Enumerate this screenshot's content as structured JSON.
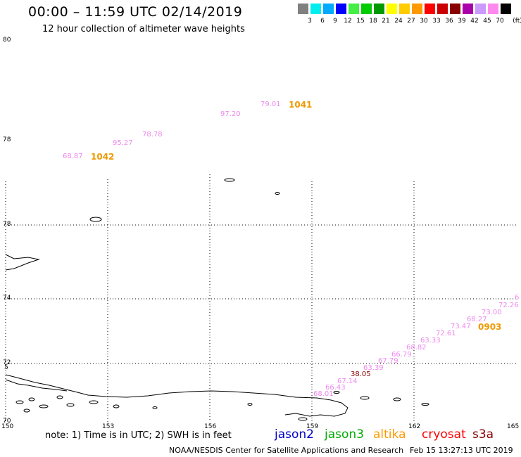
{
  "header": {
    "title": "00:00 – 11:59 UTC 02/14/2019",
    "subtitle": "12 hour collection of altimeter wave heights"
  },
  "legend": {
    "unit": "(ft)",
    "items": [
      {
        "label": "3",
        "color": "#808080"
      },
      {
        "label": "6",
        "color": "#00eeee"
      },
      {
        "label": "9",
        "color": "#00aaff"
      },
      {
        "label": "12",
        "color": "#0000ff"
      },
      {
        "label": "15",
        "color": "#44ee44"
      },
      {
        "label": "18",
        "color": "#00cc00"
      },
      {
        "label": "21",
        "color": "#009900"
      },
      {
        "label": "24",
        "color": "#ffff00"
      },
      {
        "label": "27",
        "color": "#ffcc00"
      },
      {
        "label": "30",
        "color": "#ff9900"
      },
      {
        "label": "33",
        "color": "#ff0000"
      },
      {
        "label": "36",
        "color": "#cc0000"
      },
      {
        "label": "39",
        "color": "#880000"
      },
      {
        "label": "42",
        "color": "#aa00aa"
      },
      {
        "label": "45",
        "color": "#cc99ff"
      },
      {
        "label": "70",
        "color": "#ff88ee"
      },
      {
        "label": "",
        "color": "#000000"
      }
    ]
  },
  "axes": {
    "lon_labels": [
      "150",
      "153",
      "156",
      "159",
      "162",
      "165"
    ],
    "lat_labels": [
      "80",
      "78",
      "76",
      "74",
      "72",
      "70"
    ],
    "partial_label": "5"
  },
  "wave_labels": {
    "color": "#ee88ee",
    "values": [
      "68.87",
      "95.27",
      "78.78",
      "97.20",
      "79.01",
      "72.26",
      "6",
      "73.00",
      "68.27",
      "73.47",
      "72.61",
      "63.33",
      "68.82",
      "66.79",
      "67.79",
      "63.39",
      "67.14",
      "66.43",
      "68.01"
    ],
    "dark_value": "38.05",
    "dark_color": "#880000"
  },
  "time_labels": [
    "1042",
    "1041",
    "0903"
  ],
  "footer": {
    "note": "note: 1) Time is in UTC; 2) SWH is in feet",
    "satellites": [
      {
        "name": "jason2",
        "color": "#0000cc"
      },
      {
        "name": "jason3",
        "color": "#00aa00"
      },
      {
        "name": "altika",
        "color": "#ff9900"
      },
      {
        "name": "cryosat",
        "color": "#ff0000"
      },
      {
        "name": "s3a",
        "color": "#880000"
      }
    ],
    "credit": "NOAA/NESDIS Center for Satellite Applications and Research",
    "timestamp": "Feb 15 13:27:13 UTC 2019"
  }
}
